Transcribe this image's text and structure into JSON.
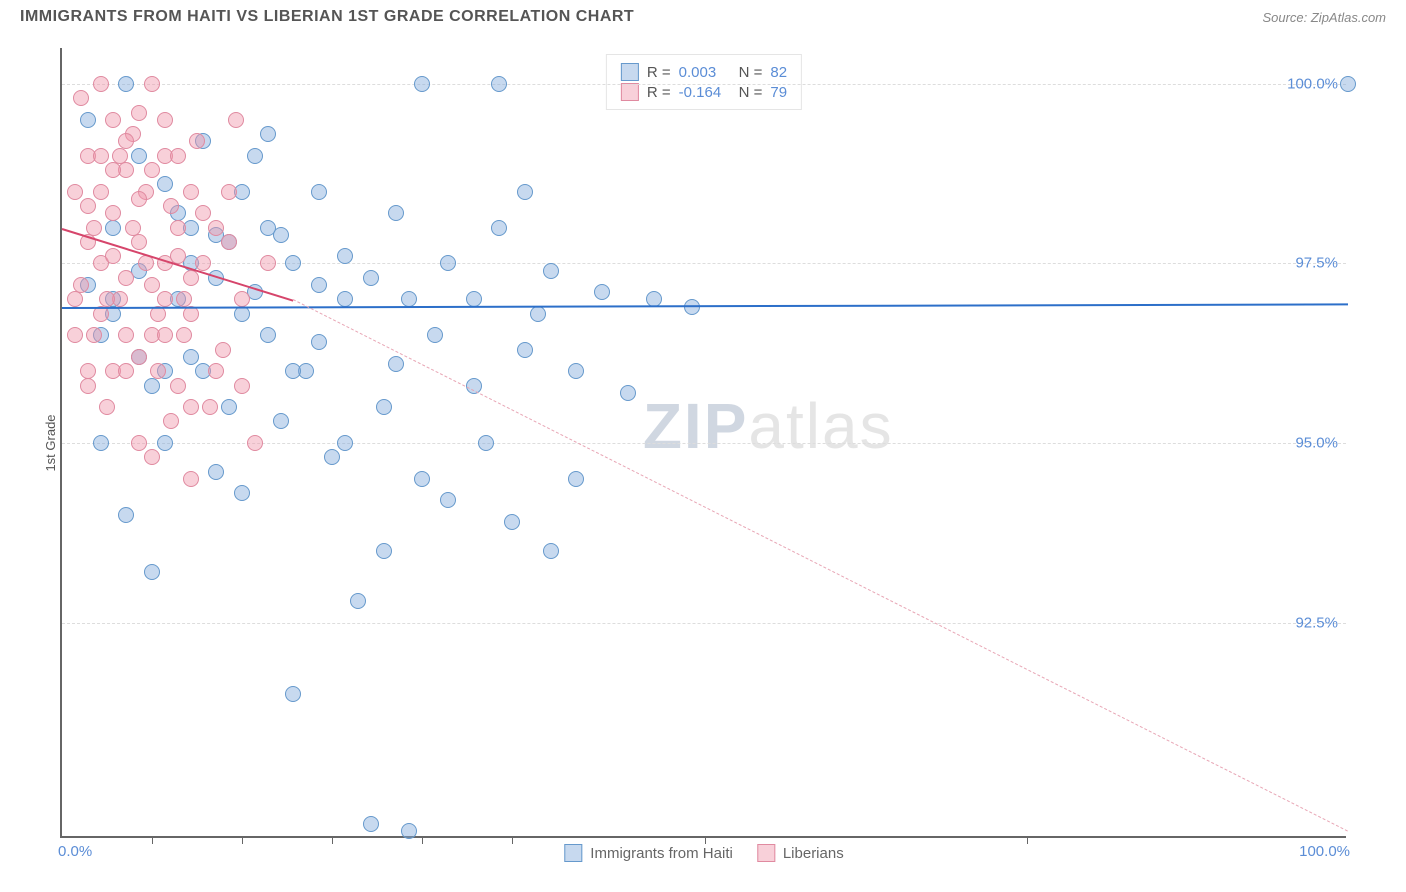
{
  "header": {
    "title": "IMMIGRANTS FROM HAITI VS LIBERIAN 1ST GRADE CORRELATION CHART",
    "source": "Source: ZipAtlas.com"
  },
  "chart": {
    "type": "scatter",
    "y_label": "1st Grade",
    "x_range": [
      0,
      100
    ],
    "y_range": [
      89.5,
      100.5
    ],
    "y_ticks": [
      92.5,
      95.0,
      97.5,
      100.0
    ],
    "y_tick_labels": [
      "92.5%",
      "95.0%",
      "97.5%",
      "100.0%"
    ],
    "x_axis_labels": {
      "left": "0.0%",
      "right": "100.0%"
    },
    "x_tick_positions": [
      7,
      14,
      21,
      28,
      35,
      50,
      75
    ],
    "background_color": "#ffffff",
    "grid_color": "#dddddd",
    "axis_color": "#666666",
    "tick_label_color": "#5b8dd6",
    "marker_size": 16,
    "series": [
      {
        "name": "Immigrants from Haiti",
        "color_fill": "rgba(130,170,220,0.45)",
        "color_stroke": "#6699cc",
        "R": "0.003",
        "N": "82",
        "trend": {
          "x1": 0,
          "y1": 96.9,
          "x2": 100,
          "y2": 96.95,
          "color": "#2c6fc9",
          "width": 2,
          "dash": false
        },
        "points": [
          [
            2,
            97.2
          ],
          [
            3,
            96.5
          ],
          [
            4,
            98.0
          ],
          [
            5,
            100.0
          ],
          [
            6,
            97.4
          ],
          [
            7,
            95.8
          ],
          [
            8,
            98.6
          ],
          [
            9,
            97.0
          ],
          [
            10,
            96.2
          ],
          [
            11,
            99.2
          ],
          [
            12,
            97.3
          ],
          [
            13,
            95.5
          ],
          [
            13,
            97.8
          ],
          [
            14,
            94.3
          ],
          [
            15,
            97.1
          ],
          [
            15,
            99.0
          ],
          [
            16,
            96.5
          ],
          [
            17,
            95.3
          ],
          [
            17,
            97.9
          ],
          [
            18,
            91.5
          ],
          [
            19,
            96.0
          ],
          [
            20,
            97.2
          ],
          [
            21,
            94.8
          ],
          [
            22,
            97.0
          ],
          [
            23,
            92.8
          ],
          [
            24,
            89.7
          ],
          [
            25,
            95.5
          ],
          [
            25,
            93.5
          ],
          [
            26,
            98.2
          ],
          [
            27,
            97.0
          ],
          [
            28,
            100.0
          ],
          [
            29,
            96.5
          ],
          [
            30,
            94.2
          ],
          [
            32,
            97.0
          ],
          [
            33,
            95.0
          ],
          [
            34,
            100.0
          ],
          [
            35,
            93.9
          ],
          [
            36,
            98.5
          ],
          [
            37,
            96.8
          ],
          [
            38,
            93.5
          ],
          [
            40,
            96.0
          ],
          [
            42,
            97.1
          ],
          [
            44,
            95.7
          ],
          [
            46,
            97.0
          ],
          [
            49,
            96.9
          ],
          [
            2,
            99.5
          ],
          [
            3,
            95.0
          ],
          [
            4,
            96.8
          ],
          [
            5,
            94.0
          ],
          [
            6,
            99.0
          ],
          [
            7,
            93.2
          ],
          [
            8,
            96.0
          ],
          [
            9,
            98.2
          ],
          [
            10,
            97.5
          ],
          [
            11,
            96.0
          ],
          [
            12,
            94.6
          ],
          [
            14,
            98.5
          ],
          [
            16,
            99.3
          ],
          [
            18,
            97.5
          ],
          [
            20,
            96.4
          ],
          [
            22,
            95.0
          ],
          [
            24,
            97.3
          ],
          [
            26,
            96.1
          ],
          [
            28,
            94.5
          ],
          [
            30,
            97.5
          ],
          [
            32,
            95.8
          ],
          [
            34,
            98.0
          ],
          [
            36,
            96.3
          ],
          [
            38,
            97.4
          ],
          [
            40,
            94.5
          ],
          [
            27,
            89.6
          ],
          [
            100,
            100.0
          ],
          [
            4,
            97.0
          ],
          [
            6,
            96.2
          ],
          [
            8,
            95.0
          ],
          [
            10,
            98.0
          ],
          [
            12,
            97.9
          ],
          [
            14,
            96.8
          ],
          [
            16,
            98.0
          ],
          [
            18,
            96.0
          ],
          [
            20,
            98.5
          ],
          [
            22,
            97.6
          ]
        ]
      },
      {
        "name": "Liberians",
        "color_fill": "rgba(240,150,170,0.45)",
        "color_stroke": "#e08aa0",
        "R": "-0.164",
        "N": "79",
        "trend": {
          "x1": 0,
          "y1": 98.0,
          "x2": 18,
          "y2": 97.0,
          "color": "#d6456b",
          "width": 2,
          "dash": false
        },
        "trend_ext": {
          "x1": 18,
          "y1": 97.0,
          "x2": 100,
          "y2": 89.6,
          "color": "#e8a6b5",
          "dash": true
        },
        "points": [
          [
            1,
            98.5
          ],
          [
            1.5,
            97.2
          ],
          [
            2,
            99.0
          ],
          [
            2,
            96.0
          ],
          [
            2.5,
            98.0
          ],
          [
            3,
            100.0
          ],
          [
            3,
            97.5
          ],
          [
            3.5,
            95.5
          ],
          [
            4,
            98.2
          ],
          [
            4,
            99.5
          ],
          [
            4.5,
            97.0
          ],
          [
            5,
            98.8
          ],
          [
            5,
            96.5
          ],
          [
            5.5,
            99.3
          ],
          [
            6,
            97.8
          ],
          [
            6,
            95.0
          ],
          [
            6.5,
            98.5
          ],
          [
            7,
            100.0
          ],
          [
            7,
            97.2
          ],
          [
            7.5,
            96.0
          ],
          [
            8,
            99.0
          ],
          [
            8,
            97.5
          ],
          [
            8.5,
            98.3
          ],
          [
            9,
            95.8
          ],
          [
            9.5,
            97.0
          ],
          [
            10,
            98.5
          ],
          [
            10,
            96.8
          ],
          [
            10.5,
            99.2
          ],
          [
            11,
            97.5
          ],
          [
            11.5,
            95.5
          ],
          [
            12,
            98.0
          ],
          [
            12.5,
            96.3
          ],
          [
            13,
            97.8
          ],
          [
            13.5,
            99.5
          ],
          [
            14,
            97.0
          ],
          [
            15,
            95.0
          ],
          [
            16,
            97.5
          ],
          [
            1,
            97.0
          ],
          [
            1.5,
            99.8
          ],
          [
            2,
            97.8
          ],
          [
            2.5,
            96.5
          ],
          [
            3,
            98.5
          ],
          [
            3.5,
            97.0
          ],
          [
            4,
            96.0
          ],
          [
            4.5,
            99.0
          ],
          [
            5,
            97.3
          ],
          [
            5.5,
            98.0
          ],
          [
            6,
            96.2
          ],
          [
            6.5,
            97.5
          ],
          [
            7,
            98.8
          ],
          [
            7.5,
            96.8
          ],
          [
            8,
            97.0
          ],
          [
            8.5,
            95.3
          ],
          [
            9,
            98.0
          ],
          [
            9.5,
            96.5
          ],
          [
            10,
            97.3
          ],
          [
            11,
            98.2
          ],
          [
            12,
            96.0
          ],
          [
            13,
            98.5
          ],
          [
            14,
            95.8
          ],
          [
            1,
            96.5
          ],
          [
            2,
            98.3
          ],
          [
            3,
            96.8
          ],
          [
            4,
            97.6
          ],
          [
            5,
            99.2
          ],
          [
            6,
            98.4
          ],
          [
            7,
            96.5
          ],
          [
            8,
            99.5
          ],
          [
            9,
            97.6
          ],
          [
            10,
            95.5
          ],
          [
            2,
            95.8
          ],
          [
            3,
            99.0
          ],
          [
            4,
            98.8
          ],
          [
            5,
            96.0
          ],
          [
            6,
            99.6
          ],
          [
            7,
            94.8
          ],
          [
            8,
            96.5
          ],
          [
            9,
            99.0
          ],
          [
            10,
            94.5
          ]
        ]
      }
    ],
    "watermark": {
      "text1": "ZIP",
      "text2": "atlas"
    },
    "legend_bottom": [
      {
        "label": "Immigrants from Haiti",
        "fill": "rgba(130,170,220,0.45)",
        "stroke": "#6699cc"
      },
      {
        "label": "Liberians",
        "fill": "rgba(240,150,170,0.45)",
        "stroke": "#e08aa0"
      }
    ]
  }
}
